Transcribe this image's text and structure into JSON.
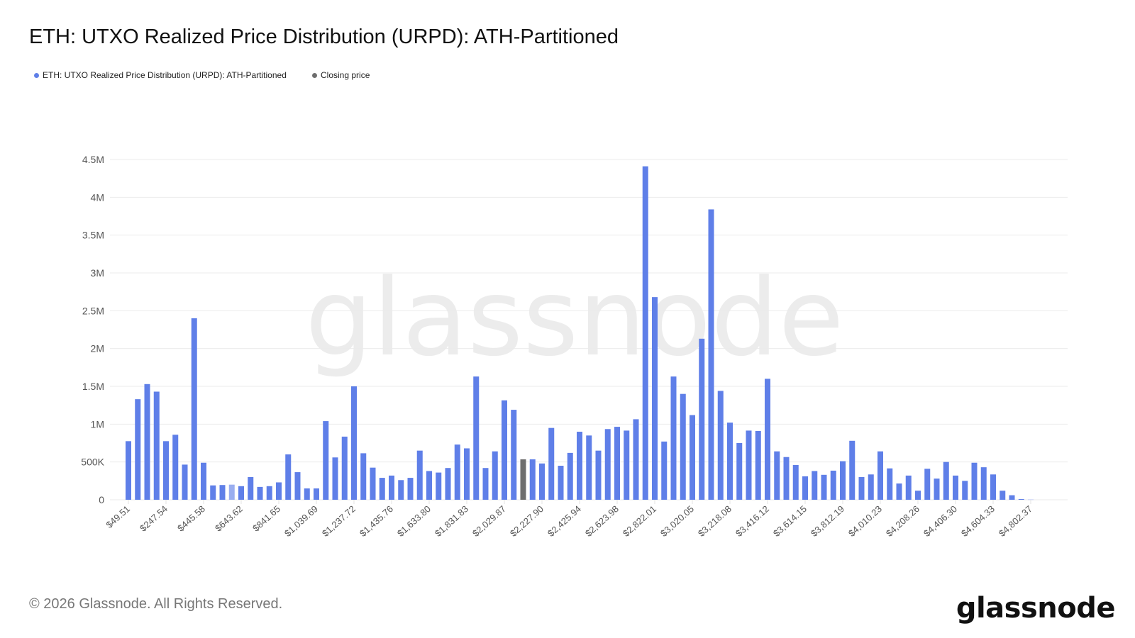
{
  "title": "ETH: UTXO Realized Price Distribution (URPD): ATH-Partitioned",
  "legend": [
    {
      "label": "ETH: UTXO Realized Price Distribution (URPD): ATH-Partitioned",
      "color": "#5f7fe8"
    },
    {
      "label": "Closing price",
      "color": "#6e6e6e"
    }
  ],
  "footer": "© 2026 Glassnode. All Rights Reserved.",
  "logo": "glassnode",
  "watermark": "glassnode",
  "chart_data": {
    "type": "bar",
    "title": "ETH: UTXO Realized Price Distribution (URPD): ATH-Partitioned",
    "xlabel": "",
    "ylabel": "",
    "ylim": [
      0,
      4500000
    ],
    "yticks": [
      0,
      500000,
      1000000,
      1500000,
      2000000,
      2500000,
      3000000,
      3500000,
      4000000,
      4500000
    ],
    "ytick_labels": [
      "0",
      "500K",
      "1M",
      "1.5M",
      "2M",
      "2.5M",
      "3M",
      "3.5M",
      "4M",
      "4.5M"
    ],
    "grid": true,
    "legend_placement": "top-left",
    "tick_every": 4,
    "tick_labels": [
      "$49.51",
      "$247.54",
      "$445.58",
      "$643.62",
      "$841.65",
      "$1,039.69",
      "$1,237.72",
      "$1,435.76",
      "$1,633.80",
      "$1,831.83",
      "$2,029.87",
      "$2,227.90",
      "$2,425.94",
      "$2,623.98",
      "$2,822.01",
      "$3,020.05",
      "$3,218.08",
      "$3,416.12",
      "$3,614.15",
      "$3,812.19",
      "$4,010.23",
      "$4,208.26",
      "$4,406.30",
      "$4,604.33",
      "$4,802.37"
    ],
    "closing_price_bar_index": 42,
    "highlighted_bar_index": 11,
    "series": [
      {
        "name": "ETH: UTXO Realized Price Distribution (URPD): ATH-Partitioned",
        "color": "#5f7fe8",
        "values": [
          775000,
          1330000,
          1530000,
          1430000,
          775000,
          860000,
          465000,
          2400000,
          490000,
          190000,
          195000,
          200000,
          180000,
          300000,
          170000,
          180000,
          230000,
          600000,
          365000,
          150000,
          150000,
          1040000,
          560000,
          835000,
          1500000,
          615000,
          425000,
          290000,
          320000,
          260000,
          290000,
          650000,
          380000,
          360000,
          420000,
          730000,
          680000,
          1630000,
          420000,
          640000,
          1315000,
          1190000,
          535000,
          535000,
          480000,
          950000,
          450000,
          620000,
          900000,
          850000,
          650000,
          935000,
          965000,
          915000,
          1065000,
          4410000,
          2680000,
          770000,
          1630000,
          1400000,
          1120000,
          2130000,
          3840000,
          1440000,
          1020000,
          750000,
          915000,
          910000,
          1600000,
          640000,
          565000,
          460000,
          310000,
          380000,
          330000,
          385000,
          510000,
          780000,
          300000,
          335000,
          640000,
          415000,
          215000,
          320000,
          120000,
          410000,
          280000,
          500000,
          320000,
          250000,
          490000,
          430000,
          335000,
          120000,
          60000,
          10000,
          5000
        ]
      },
      {
        "name": "Closing price",
        "color": "#6e6e6e"
      }
    ]
  }
}
